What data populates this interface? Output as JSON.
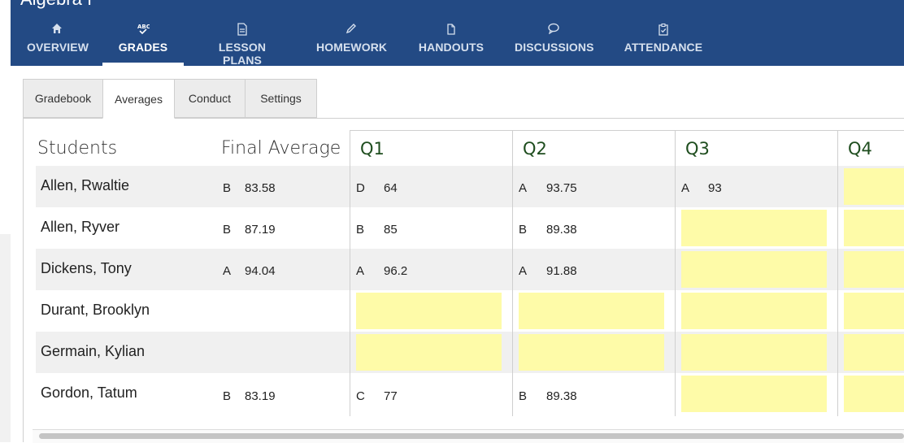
{
  "app": {
    "course_title": "Algebra I"
  },
  "nav": {
    "items": [
      {
        "label": "OVERVIEW",
        "icon": "home-icon"
      },
      {
        "label": "GRADES",
        "icon": "abc-check-icon",
        "active": true
      },
      {
        "label": "LESSON PLANS",
        "icon": "document-icon"
      },
      {
        "label": "HOMEWORK",
        "icon": "pencil-icon"
      },
      {
        "label": "HANDOUTS",
        "icon": "copy-icon"
      },
      {
        "label": "DISCUSSIONS",
        "icon": "speech-bubble-icon"
      },
      {
        "label": "ATTENDANCE",
        "icon": "clipboard-check-icon"
      }
    ]
  },
  "subtabs": [
    "Gradebook",
    "Averages",
    "Conduct",
    "Settings"
  ],
  "active_subtab": "Averages",
  "table": {
    "col_students": "Students",
    "col_final": "Final Average",
    "quarters": [
      "Q1",
      "Q2",
      "Q3",
      "Q4"
    ],
    "rows": [
      {
        "name": "Allen, Rwaltie",
        "final_letter": "B",
        "final_value": "83.58",
        "q1_letter": "D",
        "q1_value": "64",
        "q2_letter": "A",
        "q2_value": "93.75",
        "q3_letter": "A",
        "q3_value": "93"
      },
      {
        "name": "Allen, Ryver",
        "final_letter": "B",
        "final_value": "87.19",
        "q1_letter": "B",
        "q1_value": "85",
        "q2_letter": "B",
        "q2_value": "89.38"
      },
      {
        "name": "Dickens, Tony",
        "final_letter": "A",
        "final_value": "94.04",
        "q1_letter": "A",
        "q1_value": "96.2",
        "q2_letter": "A",
        "q2_value": "91.88"
      },
      {
        "name": "Durant, Brooklyn"
      },
      {
        "name": "Germain, Kylian"
      },
      {
        "name": "Gordon, Tatum",
        "final_letter": "B",
        "final_value": "83.19",
        "q1_letter": "C",
        "q1_value": "77",
        "q2_letter": "B",
        "q2_value": "89.38"
      }
    ]
  },
  "colors": {
    "nav_bg": "#234a84",
    "quarter_header": "#1e4d1e",
    "empty_cell": "#fefba8",
    "row_shade": "#f0f0f0"
  }
}
